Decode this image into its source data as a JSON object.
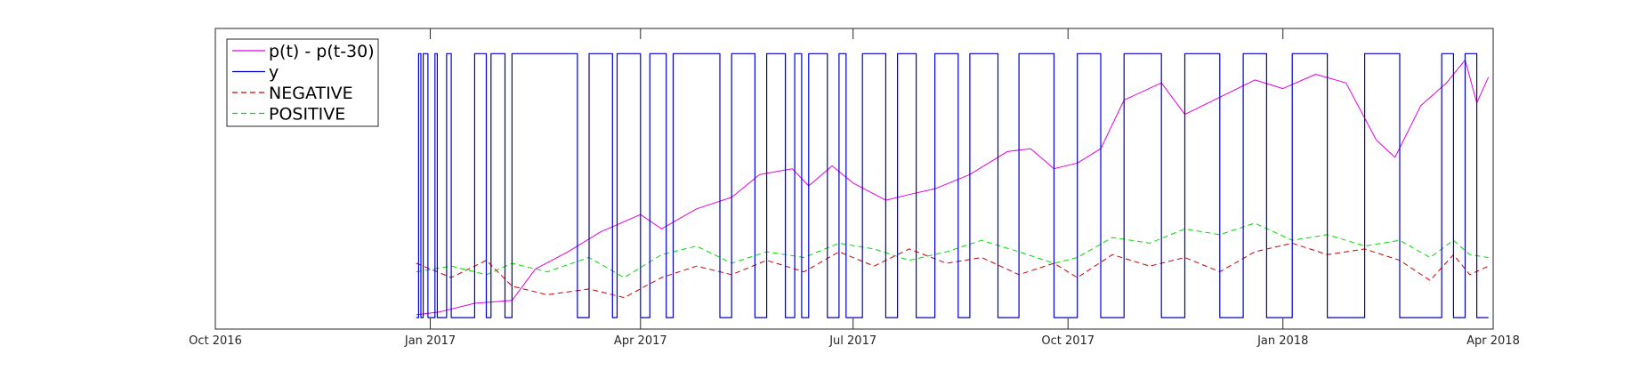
{
  "chart_data": {
    "type": "line",
    "title": "",
    "xlabel": "",
    "ylabel": "",
    "x_range": [
      "2016-10-01",
      "2018-04-01"
    ],
    "y_range": [
      0,
      1.05
    ],
    "grid": false,
    "legend_position": "top-left",
    "x_tick_labels": [
      {
        "date": "2016-10-01",
        "label": "Oct 2016"
      },
      {
        "date": "2017-01-01",
        "label": "Jan 2017"
      },
      {
        "date": "2017-04-01",
        "label": "Apr 2017"
      },
      {
        "date": "2017-07-01",
        "label": "Jul 2017"
      },
      {
        "date": "2017-10-01",
        "label": "Oct 2017"
      },
      {
        "date": "2018-01-01",
        "label": "Jan 2018"
      },
      {
        "date": "2018-04-01",
        "label": "Apr 2018"
      }
    ],
    "series": [
      {
        "name": "p(t) - p(t-30)",
        "color": "#e100e1",
        "dash": "solid",
        "points": [
          [
            "2016-12-26",
            0.05
          ],
          [
            "2017-01-05",
            0.06
          ],
          [
            "2017-01-20",
            0.09
          ],
          [
            "2017-02-05",
            0.1
          ],
          [
            "2017-02-15",
            0.21
          ],
          [
            "2017-03-01",
            0.27
          ],
          [
            "2017-03-15",
            0.34
          ],
          [
            "2017-04-01",
            0.4
          ],
          [
            "2017-04-10",
            0.35
          ],
          [
            "2017-04-25",
            0.42
          ],
          [
            "2017-05-10",
            0.46
          ],
          [
            "2017-05-22",
            0.54
          ],
          [
            "2017-06-05",
            0.56
          ],
          [
            "2017-06-12",
            0.5
          ],
          [
            "2017-06-22",
            0.57
          ],
          [
            "2017-07-01",
            0.51
          ],
          [
            "2017-07-15",
            0.45
          ],
          [
            "2017-07-25",
            0.47
          ],
          [
            "2017-08-05",
            0.49
          ],
          [
            "2017-08-20",
            0.54
          ],
          [
            "2017-09-05",
            0.62
          ],
          [
            "2017-09-15",
            0.63
          ],
          [
            "2017-09-25",
            0.56
          ],
          [
            "2017-10-05",
            0.58
          ],
          [
            "2017-10-15",
            0.63
          ],
          [
            "2017-10-25",
            0.8
          ],
          [
            "2017-11-10",
            0.86
          ],
          [
            "2017-11-20",
            0.75
          ],
          [
            "2017-12-05",
            0.81
          ],
          [
            "2017-12-20",
            0.87
          ],
          [
            "2018-01-01",
            0.84
          ],
          [
            "2018-01-15",
            0.89
          ],
          [
            "2018-01-28",
            0.86
          ],
          [
            "2018-02-10",
            0.66
          ],
          [
            "2018-02-18",
            0.6
          ],
          [
            "2018-03-01",
            0.78
          ],
          [
            "2018-03-12",
            0.86
          ],
          [
            "2018-03-20",
            0.94
          ],
          [
            "2018-03-25",
            0.79
          ],
          [
            "2018-03-30",
            0.88
          ]
        ]
      },
      {
        "name": "y",
        "color": "#0000cc",
        "dash": "solid",
        "binary": true,
        "points": [
          [
            "2016-12-26",
            0
          ],
          [
            "2016-12-27",
            1
          ],
          [
            "2016-12-28",
            0
          ],
          [
            "2016-12-29",
            1
          ],
          [
            "2016-12-31",
            0
          ],
          [
            "2017-01-03",
            1
          ],
          [
            "2017-01-04",
            0
          ],
          [
            "2017-01-08",
            1
          ],
          [
            "2017-01-10",
            0
          ],
          [
            "2017-01-20",
            1
          ],
          [
            "2017-01-25",
            0
          ],
          [
            "2017-01-27",
            1
          ],
          [
            "2017-02-02",
            0
          ],
          [
            "2017-02-05",
            1
          ],
          [
            "2017-03-05",
            0
          ],
          [
            "2017-03-10",
            1
          ],
          [
            "2017-03-20",
            0
          ],
          [
            "2017-03-22",
            1
          ],
          [
            "2017-04-01",
            0
          ],
          [
            "2017-04-05",
            1
          ],
          [
            "2017-04-12",
            0
          ],
          [
            "2017-04-15",
            1
          ],
          [
            "2017-05-05",
            0
          ],
          [
            "2017-05-10",
            1
          ],
          [
            "2017-05-20",
            0
          ],
          [
            "2017-05-25",
            1
          ],
          [
            "2017-06-02",
            0
          ],
          [
            "2017-06-06",
            1
          ],
          [
            "2017-06-09",
            0
          ],
          [
            "2017-06-12",
            1
          ],
          [
            "2017-06-20",
            0
          ],
          [
            "2017-06-25",
            1
          ],
          [
            "2017-06-28",
            0
          ],
          [
            "2017-07-05",
            1
          ],
          [
            "2017-07-15",
            0
          ],
          [
            "2017-07-20",
            1
          ],
          [
            "2017-07-28",
            0
          ],
          [
            "2017-08-05",
            1
          ],
          [
            "2017-08-15",
            0
          ],
          [
            "2017-08-20",
            1
          ],
          [
            "2017-09-01",
            0
          ],
          [
            "2017-09-10",
            1
          ],
          [
            "2017-09-25",
            0
          ],
          [
            "2017-10-05",
            1
          ],
          [
            "2017-10-15",
            0
          ],
          [
            "2017-10-25",
            1
          ],
          [
            "2017-11-10",
            0
          ],
          [
            "2017-11-20",
            1
          ],
          [
            "2017-12-05",
            0
          ],
          [
            "2017-12-15",
            1
          ],
          [
            "2017-12-25",
            0
          ],
          [
            "2018-01-05",
            1
          ],
          [
            "2018-01-20",
            0
          ],
          [
            "2018-02-05",
            1
          ],
          [
            "2018-02-20",
            0
          ],
          [
            "2018-03-10",
            1
          ],
          [
            "2018-03-15",
            0
          ],
          [
            "2018-03-20",
            1
          ],
          [
            "2018-03-25",
            0
          ],
          [
            "2018-03-30",
            0
          ]
        ]
      },
      {
        "name": "NEGATIVE",
        "color": "#cc0000",
        "dash": "dashed",
        "points": [
          [
            "2016-12-26",
            0.23
          ],
          [
            "2017-01-10",
            0.18
          ],
          [
            "2017-01-25",
            0.24
          ],
          [
            "2017-02-05",
            0.15
          ],
          [
            "2017-02-20",
            0.12
          ],
          [
            "2017-03-10",
            0.14
          ],
          [
            "2017-03-25",
            0.11
          ],
          [
            "2017-04-10",
            0.18
          ],
          [
            "2017-04-25",
            0.22
          ],
          [
            "2017-05-10",
            0.19
          ],
          [
            "2017-05-25",
            0.24
          ],
          [
            "2017-06-10",
            0.2
          ],
          [
            "2017-06-25",
            0.27
          ],
          [
            "2017-07-10",
            0.22
          ],
          [
            "2017-07-25",
            0.28
          ],
          [
            "2017-08-10",
            0.23
          ],
          [
            "2017-08-25",
            0.25
          ],
          [
            "2017-09-10",
            0.19
          ],
          [
            "2017-09-25",
            0.23
          ],
          [
            "2017-10-05",
            0.18
          ],
          [
            "2017-10-20",
            0.26
          ],
          [
            "2017-11-05",
            0.22
          ],
          [
            "2017-11-20",
            0.25
          ],
          [
            "2017-12-05",
            0.2
          ],
          [
            "2017-12-20",
            0.27
          ],
          [
            "2018-01-05",
            0.3
          ],
          [
            "2018-01-20",
            0.26
          ],
          [
            "2018-02-05",
            0.28
          ],
          [
            "2018-02-20",
            0.24
          ],
          [
            "2018-03-05",
            0.17
          ],
          [
            "2018-03-15",
            0.26
          ],
          [
            "2018-03-22",
            0.19
          ],
          [
            "2018-03-30",
            0.22
          ]
        ]
      },
      {
        "name": "POSITIVE",
        "color": "#00dd00",
        "dash": "dashed",
        "points": [
          [
            "2016-12-26",
            0.2
          ],
          [
            "2017-01-10",
            0.22
          ],
          [
            "2017-01-25",
            0.19
          ],
          [
            "2017-02-05",
            0.23
          ],
          [
            "2017-02-20",
            0.2
          ],
          [
            "2017-03-10",
            0.25
          ],
          [
            "2017-03-25",
            0.18
          ],
          [
            "2017-04-10",
            0.26
          ],
          [
            "2017-04-25",
            0.29
          ],
          [
            "2017-05-10",
            0.23
          ],
          [
            "2017-05-25",
            0.27
          ],
          [
            "2017-06-10",
            0.25
          ],
          [
            "2017-06-25",
            0.3
          ],
          [
            "2017-07-10",
            0.28
          ],
          [
            "2017-07-25",
            0.24
          ],
          [
            "2017-08-10",
            0.27
          ],
          [
            "2017-08-25",
            0.31
          ],
          [
            "2017-09-10",
            0.27
          ],
          [
            "2017-09-25",
            0.23
          ],
          [
            "2017-10-05",
            0.25
          ],
          [
            "2017-10-20",
            0.32
          ],
          [
            "2017-11-05",
            0.3
          ],
          [
            "2017-11-20",
            0.35
          ],
          [
            "2017-12-05",
            0.33
          ],
          [
            "2017-12-20",
            0.37
          ],
          [
            "2018-01-05",
            0.31
          ],
          [
            "2018-01-20",
            0.33
          ],
          [
            "2018-02-05",
            0.29
          ],
          [
            "2018-02-20",
            0.31
          ],
          [
            "2018-03-05",
            0.25
          ],
          [
            "2018-03-15",
            0.31
          ],
          [
            "2018-03-22",
            0.26
          ],
          [
            "2018-03-30",
            0.25
          ]
        ]
      }
    ]
  }
}
